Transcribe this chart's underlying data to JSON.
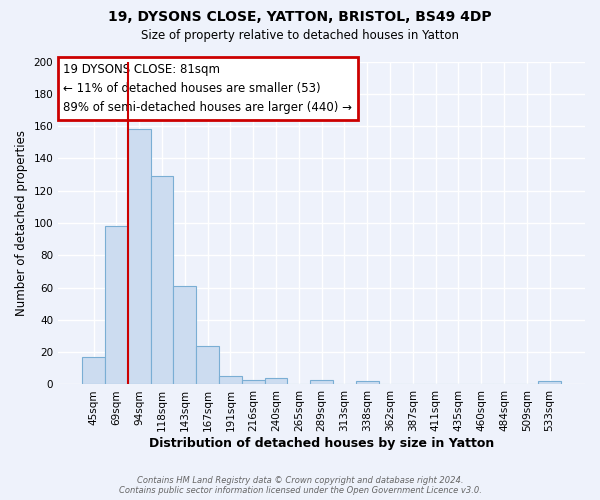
{
  "title_line1": "19, DYSONS CLOSE, YATTON, BRISTOL, BS49 4DP",
  "title_line2": "Size of property relative to detached houses in Yatton",
  "xlabel": "Distribution of detached houses by size in Yatton",
  "ylabel": "Number of detached properties",
  "bar_labels": [
    "45sqm",
    "69sqm",
    "94sqm",
    "118sqm",
    "143sqm",
    "167sqm",
    "191sqm",
    "216sqm",
    "240sqm",
    "265sqm",
    "289sqm",
    "313sqm",
    "338sqm",
    "362sqm",
    "387sqm",
    "411sqm",
    "435sqm",
    "460sqm",
    "484sqm",
    "509sqm",
    "533sqm"
  ],
  "bar_values": [
    17,
    98,
    158,
    129,
    61,
    24,
    5,
    3,
    4,
    0,
    3,
    0,
    2,
    0,
    0,
    0,
    0,
    0,
    0,
    0,
    2
  ],
  "bar_color": "#ccdcf0",
  "bar_edge_color": "#7aaed4",
  "property_line_x": 1.52,
  "property_line_color": "#cc0000",
  "annotation_title": "19 DYSONS CLOSE: 81sqm",
  "annotation_line1": "← 11% of detached houses are smaller (53)",
  "annotation_line2": "89% of semi-detached houses are larger (440) →",
  "annotation_box_color": "#ffffff",
  "annotation_box_edge": "#cc0000",
  "ylim": [
    0,
    200
  ],
  "yticks": [
    0,
    20,
    40,
    60,
    80,
    100,
    120,
    140,
    160,
    180,
    200
  ],
  "footer_line1": "Contains HM Land Registry data © Crown copyright and database right 2024.",
  "footer_line2": "Contains public sector information licensed under the Open Government Licence v3.0.",
  "background_color": "#eef2fb"
}
